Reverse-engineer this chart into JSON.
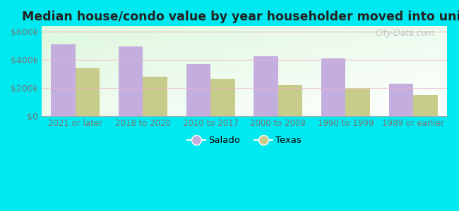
{
  "title": "Median house/condo value by year householder moved into unit",
  "categories": [
    "2021 or later",
    "2018 to 2020",
    "2010 to 2017",
    "2000 to 2009",
    "1990 to 1999",
    "1989 or earlier"
  ],
  "salado_values": [
    510000,
    498000,
    368000,
    425000,
    408000,
    228000
  ],
  "texas_values": [
    338000,
    282000,
    262000,
    218000,
    192000,
    148000
  ],
  "salado_color": "#c4aee0",
  "texas_color": "#c8cc8a",
  "background_outer": "#00e8f0",
  "yticks": [
    0,
    200000,
    400000,
    600000
  ],
  "ytick_labels": [
    "$0",
    "$200k",
    "$400k",
    "$600k"
  ],
  "ylim": [
    0,
    640000
  ],
  "bar_width": 0.36,
  "legend_salado": "Salado",
  "legend_texas": "Texas",
  "watermark": "City-Data.com",
  "grid_color": "#e8b4c8",
  "tick_color": "#777777",
  "title_color": "#222222"
}
